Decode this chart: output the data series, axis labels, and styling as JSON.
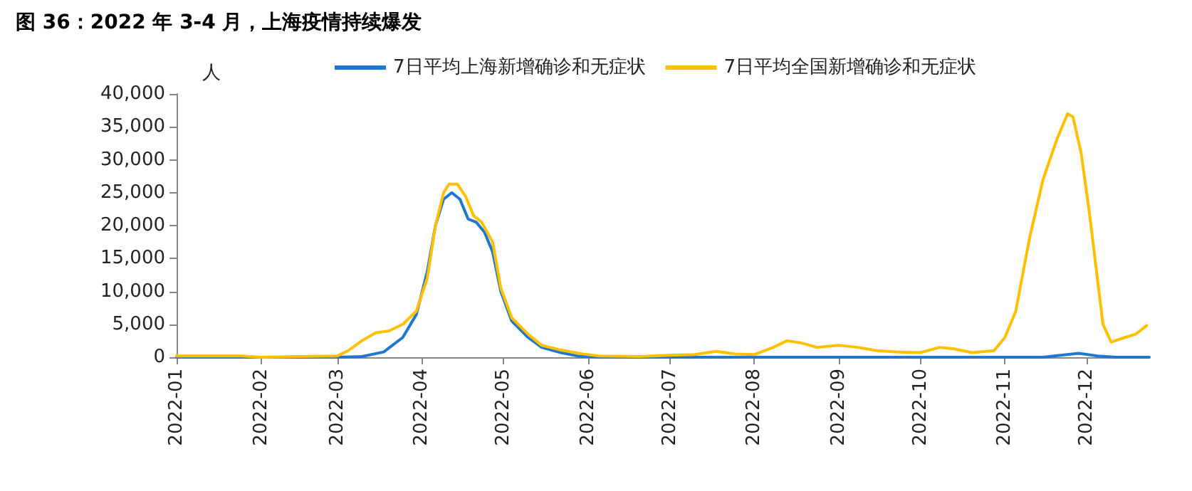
{
  "chart_data": {
    "type": "line",
    "title": "图 36：2022 年 3-4 月，上海疫情持续爆发",
    "ylabel": "人",
    "xlim": [
      "2022-01-01",
      "2022-12-24"
    ],
    "xticks": [
      "2022-01",
      "2022-02",
      "2022-03",
      "2022-04",
      "2022-05",
      "2022-06",
      "2022-07",
      "2022-08",
      "2022-09",
      "2022-10",
      "2022-11",
      "2022-12"
    ],
    "ylim": [
      0,
      40000
    ],
    "yticks": [
      0,
      {
        "value": 5000,
        "label": "5,000"
      },
      {
        "value": 10000,
        "label": "10,000"
      },
      {
        "value": 15000,
        "label": "15,000"
      },
      {
        "value": 20000,
        "label": "20,000"
      },
      {
        "value": 25000,
        "label": "25,000"
      },
      {
        "value": 30000,
        "label": "30,000"
      },
      {
        "value": 35000,
        "label": "35,000"
      },
      {
        "value": 40000,
        "label": "40,000"
      }
    ],
    "grid": false,
    "legend": "top",
    "marker": "none",
    "line_style": "solid",
    "series": [
      {
        "name": "7日平均上海新增确诊和无症状",
        "color": "#1f77d0",
        "x": [
          "2022-01-01",
          "2022-03-01",
          "2022-03-10",
          "2022-03-18",
          "2022-03-25",
          "2022-03-30",
          "2022-04-03",
          "2022-04-06",
          "2022-04-09",
          "2022-04-12",
          "2022-04-15",
          "2022-04-18",
          "2022-04-21",
          "2022-04-24",
          "2022-04-27",
          "2022-04-30",
          "2022-05-04",
          "2022-05-10",
          "2022-05-15",
          "2022-05-22",
          "2022-05-28",
          "2022-06-05",
          "2022-07-01",
          "2022-11-15",
          "2022-11-28",
          "2022-12-05",
          "2022-12-12",
          "2022-12-24"
        ],
        "values": [
          0,
          0,
          100,
          800,
          3000,
          6500,
          13000,
          20000,
          24000,
          25000,
          24000,
          21000,
          20500,
          19000,
          16000,
          10000,
          5500,
          3000,
          1500,
          700,
          200,
          0,
          0,
          0,
          600,
          200,
          0,
          0
        ]
      },
      {
        "name": "7日平均全国新增确诊和无症状",
        "color": "#ffc000",
        "x": [
          "2022-01-01",
          "2022-01-25",
          "2022-02-01",
          "2022-02-15",
          "2022-03-01",
          "2022-03-05",
          "2022-03-10",
          "2022-03-15",
          "2022-03-20",
          "2022-03-25",
          "2022-03-30",
          "2022-04-03",
          "2022-04-06",
          "2022-04-09",
          "2022-04-11",
          "2022-04-14",
          "2022-04-17",
          "2022-04-20",
          "2022-04-23",
          "2022-04-27",
          "2022-04-30",
          "2022-05-04",
          "2022-05-10",
          "2022-05-15",
          "2022-05-22",
          "2022-05-30",
          "2022-06-05",
          "2022-06-20",
          "2022-07-01",
          "2022-07-10",
          "2022-07-18",
          "2022-07-25",
          "2022-08-01",
          "2022-08-08",
          "2022-08-13",
          "2022-08-18",
          "2022-08-24",
          "2022-09-01",
          "2022-09-08",
          "2022-09-15",
          "2022-09-22",
          "2022-10-01",
          "2022-10-08",
          "2022-10-13",
          "2022-10-20",
          "2022-10-28",
          "2022-11-01",
          "2022-11-05",
          "2022-11-10",
          "2022-11-15",
          "2022-11-20",
          "2022-11-24",
          "2022-11-26",
          "2022-11-29",
          "2022-12-02",
          "2022-12-07",
          "2022-12-10",
          "2022-12-15",
          "2022-12-19",
          "2022-12-23"
        ],
        "values": [
          200,
          200,
          0,
          100,
          200,
          1000,
          2500,
          3700,
          4000,
          5000,
          7000,
          12000,
          20000,
          25000,
          26300,
          26300,
          24500,
          21500,
          20500,
          17500,
          10500,
          6000,
          3500,
          1800,
          1100,
          500,
          200,
          100,
          300,
          400,
          900,
          500,
          400,
          1500,
          2500,
          2200,
          1500,
          1800,
          1500,
          1000,
          800,
          700,
          1500,
          1300,
          700,
          1000,
          3000,
          7000,
          18000,
          27000,
          33000,
          37000,
          36500,
          31000,
          22000,
          5000,
          2300,
          3000,
          3500,
          4800
        ]
      }
    ]
  }
}
